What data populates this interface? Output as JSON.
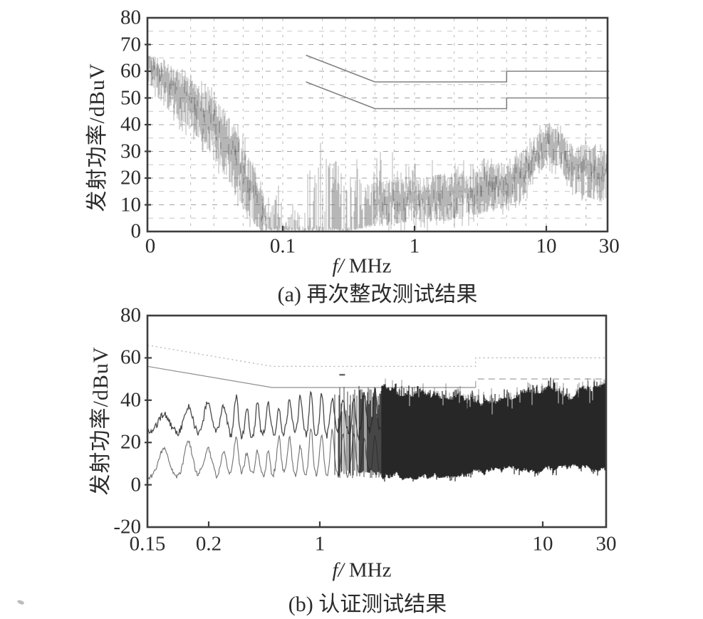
{
  "figure": {
    "background": "#ffffff",
    "text_color": "#2b2b2b",
    "frame_color": "#3d3d3d",
    "grid_color": "#a9a9a9",
    "limit_line_color": "#828282",
    "trace_color_a": "#6b6b6b",
    "trace_color_b_dark": "#191919",
    "trace_color_b_light": "#5d5d5d"
  },
  "chart_data": [
    {
      "type": "line",
      "panel": "a",
      "caption": "(a) 再次整改测试结果",
      "xlabel": "f/ MHz",
      "ylabel": "发射功率/dBuV",
      "x_scale": "log",
      "xlim": [
        0.0094,
        30
      ],
      "ylim": [
        0,
        80
      ],
      "x_ticks": [
        {
          "value": 0.0094,
          "label": "0"
        },
        {
          "value": 0.1,
          "label": "0.1"
        },
        {
          "value": 1,
          "label": "1"
        },
        {
          "value": 10,
          "label": "10"
        },
        {
          "value": 30,
          "label": "30"
        }
      ],
      "y_ticks": [
        {
          "value": 0,
          "label": "0"
        },
        {
          "value": 10,
          "label": "10"
        },
        {
          "value": 20,
          "label": "20"
        },
        {
          "value": 30,
          "label": "30"
        },
        {
          "value": 40,
          "label": "40"
        },
        {
          "value": 50,
          "label": "50"
        },
        {
          "value": 60,
          "label": "60"
        },
        {
          "value": 70,
          "label": "70"
        },
        {
          "value": 80,
          "label": "80"
        }
      ],
      "grid": {
        "style": "dashed",
        "horizontal_step_dB": 5,
        "vertical_minor_multiples": [
          2,
          3,
          5,
          7
        ]
      },
      "limit_lines": [
        {
          "name": "quasi-peak limit",
          "style": "solid",
          "points_f_dB": [
            [
              0.15,
              66
            ],
            [
              0.5,
              56
            ],
            [
              5,
              56
            ],
            [
              5,
              60
            ],
            [
              30,
              60
            ]
          ]
        },
        {
          "name": "average limit",
          "style": "solid",
          "points_f_dB": [
            [
              0.15,
              56
            ],
            [
              0.5,
              46
            ],
            [
              5,
              46
            ],
            [
              5,
              50
            ],
            [
              30,
              50
            ]
          ]
        }
      ],
      "trace": {
        "name": "emission measurement trace",
        "appearance": "noisy grey pen trace",
        "envelope_f_lo_hi_density_spike": [
          [
            0.0094,
            57,
            66,
            1,
            0
          ],
          [
            0.012,
            48,
            65,
            1,
            0
          ],
          [
            0.016,
            42,
            60,
            1,
            2
          ],
          [
            0.02,
            38,
            57,
            1,
            2
          ],
          [
            0.025,
            33,
            53,
            1,
            3
          ],
          [
            0.03,
            27,
            50,
            1,
            4
          ],
          [
            0.04,
            18,
            42,
            1,
            4
          ],
          [
            0.05,
            9,
            32,
            1,
            5
          ],
          [
            0.06,
            3,
            24,
            1,
            5
          ],
          [
            0.07,
            0,
            15,
            1,
            4
          ],
          [
            0.08,
            0,
            8,
            0.9,
            4
          ],
          [
            0.088,
            0,
            18,
            0.85,
            9
          ],
          [
            0.095,
            0,
            10,
            0.7,
            5
          ],
          [
            0.105,
            0,
            4,
            0.6,
            3
          ],
          [
            0.12,
            0,
            9,
            0.55,
            5
          ],
          [
            0.14,
            0,
            6,
            0.5,
            4
          ],
          [
            0.16,
            0,
            18,
            0.45,
            14
          ],
          [
            0.19,
            0,
            30,
            0.5,
            8
          ],
          [
            0.22,
            0,
            27,
            0.5,
            8
          ],
          [
            0.26,
            0,
            30,
            0.48,
            8
          ],
          [
            0.3,
            0,
            26,
            0.5,
            7
          ],
          [
            0.35,
            0,
            22,
            0.55,
            7
          ],
          [
            0.42,
            1,
            18,
            0.8,
            10
          ],
          [
            0.5,
            2,
            18,
            1,
            12
          ],
          [
            0.6,
            2,
            19,
            1,
            12
          ],
          [
            0.75,
            3,
            20,
            1,
            10
          ],
          [
            0.9,
            3,
            19,
            1,
            8
          ],
          [
            1.1,
            3,
            20,
            1,
            6
          ],
          [
            1.4,
            4,
            21,
            1,
            6
          ],
          [
            1.8,
            4,
            22,
            1,
            5
          ],
          [
            2.2,
            5,
            22,
            1,
            5
          ],
          [
            2.8,
            6,
            23,
            1,
            5
          ],
          [
            3.5,
            7,
            24,
            1,
            4
          ],
          [
            4.5,
            8,
            26,
            1,
            4
          ],
          [
            5.5,
            10,
            28,
            1,
            4
          ],
          [
            6.5,
            13,
            30,
            1,
            3
          ],
          [
            7.5,
            16,
            33,
            1,
            3
          ],
          [
            8.5,
            20,
            36,
            1,
            3
          ],
          [
            9.5,
            24,
            39,
            1,
            2
          ],
          [
            10.5,
            26,
            41,
            1,
            2
          ],
          [
            11.5,
            24,
            38,
            1,
            2
          ],
          [
            12.5,
            25,
            40,
            1,
            2
          ],
          [
            13.5,
            21,
            36,
            1,
            2
          ],
          [
            15,
            17,
            33,
            1,
            2
          ],
          [
            16.5,
            14,
            31,
            1,
            3
          ],
          [
            18,
            14,
            32,
            1,
            3
          ],
          [
            20,
            13,
            33,
            1,
            3
          ],
          [
            23,
            12,
            31,
            1,
            3
          ],
          [
            26,
            11,
            30,
            1,
            3
          ],
          [
            30,
            12,
            31,
            1,
            3
          ]
        ]
      }
    },
    {
      "type": "line",
      "panel": "b",
      "caption": "(b) 认证测试结果",
      "xlabel": "f/ MHz",
      "ylabel": "发射功率/dBuV",
      "x_scale": "log",
      "xlim": [
        0.15,
        30
      ],
      "ylim": [
        -20,
        80
      ],
      "x_ticks": [
        {
          "value": 0.15,
          "label": "0.15"
        },
        {
          "value": 0.2,
          "label": "0.2"
        },
        {
          "value": 1,
          "label": "1"
        },
        {
          "value": 10,
          "label": "10"
        },
        {
          "value": 30,
          "label": "30"
        }
      ],
      "y_ticks": [
        {
          "value": -20,
          "label": "-20"
        },
        {
          "value": 0,
          "label": "0"
        },
        {
          "value": 20,
          "label": "20"
        },
        {
          "value": 40,
          "label": "40"
        },
        {
          "value": 60,
          "label": "60"
        },
        {
          "value": 80,
          "label": "80"
        }
      ],
      "grid": {
        "style": "none"
      },
      "limit_lines": [
        {
          "name": "quasi-peak limit",
          "style": "dotted",
          "points_f_dB": [
            [
              0.15,
              66
            ],
            [
              0.5,
              56
            ],
            [
              5,
              56
            ],
            [
              5,
              60
            ],
            [
              30,
              60
            ]
          ]
        },
        {
          "name": "average limit",
          "style": "solid-then-dashed",
          "points_f_dB": [
            [
              0.15,
              56
            ],
            [
              0.5,
              46
            ],
            [
              5,
              46
            ],
            [
              5,
              50
            ],
            [
              30,
              50
            ]
          ]
        }
      ],
      "traces": {
        "peak_trace": {
          "name": "peak detector trace",
          "hump_f_range": [
            0.16,
            1.05
          ],
          "hump_peak_dB": [
            32,
            42
          ],
          "hump_valley_dB": [
            22,
            26
          ]
        },
        "average_trace": {
          "name": "average detector trace",
          "hump_peak_dB": [
            15,
            24
          ],
          "hump_valley_dB": [
            3,
            6.5
          ]
        },
        "dense_band": {
          "f_range": [
            1.05,
            30
          ],
          "top_envelope_f_dB": [
            [
              1.2,
              45
            ],
            [
              1.7,
              46
            ],
            [
              2.2,
              46
            ],
            [
              3,
              45
            ],
            [
              4,
              44
            ],
            [
              4.6,
              41
            ],
            [
              5.5,
              41
            ],
            [
              6.5,
              43
            ],
            [
              7.5,
              46
            ],
            [
              9,
              46
            ],
            [
              10,
              44
            ],
            [
              12,
              45
            ],
            [
              14,
              44
            ],
            [
              17,
              45
            ],
            [
              20,
              44
            ],
            [
              24,
              45
            ],
            [
              28,
              45
            ],
            [
              30,
              46
            ]
          ],
          "bottom_envelope_f_dB": [
            [
              1.05,
              4
            ],
            [
              1.7,
              4
            ],
            [
              2.5,
              4
            ],
            [
              3.5,
              5
            ],
            [
              5,
              6
            ],
            [
              7,
              7.5
            ],
            [
              10,
              7
            ],
            [
              15,
              6.5
            ],
            [
              20,
              7.5
            ],
            [
              25,
              8
            ],
            [
              30,
              8
            ]
          ]
        }
      },
      "marker_dash": {
        "f": 1.26,
        "dB": 52
      }
    }
  ]
}
